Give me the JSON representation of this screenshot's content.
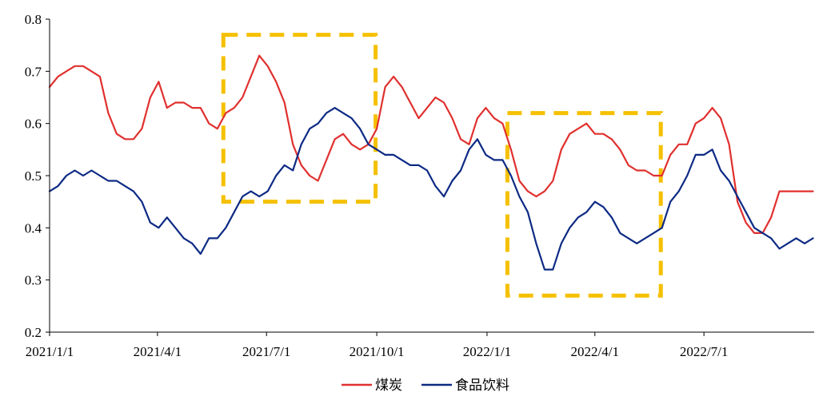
{
  "chart_data": {
    "type": "line",
    "title": "",
    "xlabel": "",
    "ylabel": "",
    "ylim": [
      0.2,
      0.8
    ],
    "yticks": [
      0.2,
      0.3,
      0.4,
      0.5,
      0.6,
      0.7,
      0.8
    ],
    "ytick_labels": [
      "0.2",
      "0.3",
      "0.4",
      "0.5",
      "0.6",
      "0.7",
      "0.8"
    ],
    "xlim": [
      "2021-01-01",
      "2022-10-01"
    ],
    "xticks": [
      "2021-01-01",
      "2021-04-01",
      "2021-07-01",
      "2021-10-01",
      "2022-01-01",
      "2022-04-01",
      "2022-07-01"
    ],
    "xtick_labels": [
      "2021/1/1",
      "2021/4/1",
      "2021/7/1",
      "2021/10/1",
      "2022/1/1",
      "2022/4/1",
      "2022/7/1"
    ],
    "grid": false,
    "legend_position": "bottom-center",
    "series": [
      {
        "name": "煤炭",
        "color": "#e0302e",
        "x": [
          "2021-01-01",
          "2021-01-08",
          "2021-01-15",
          "2021-01-22",
          "2021-01-29",
          "2021-02-05",
          "2021-02-12",
          "2021-02-19",
          "2021-02-26",
          "2021-03-05",
          "2021-03-12",
          "2021-03-19",
          "2021-03-26",
          "2021-04-02",
          "2021-04-09",
          "2021-04-16",
          "2021-04-23",
          "2021-04-30",
          "2021-05-07",
          "2021-05-14",
          "2021-05-21",
          "2021-05-28",
          "2021-06-04",
          "2021-06-11",
          "2021-06-18",
          "2021-06-25",
          "2021-07-02",
          "2021-07-09",
          "2021-07-16",
          "2021-07-23",
          "2021-07-30",
          "2021-08-06",
          "2021-08-13",
          "2021-08-20",
          "2021-08-27",
          "2021-09-03",
          "2021-09-10",
          "2021-09-17",
          "2021-09-24",
          "2021-10-01",
          "2021-10-08",
          "2021-10-15",
          "2021-10-22",
          "2021-10-29",
          "2021-11-05",
          "2021-11-12",
          "2021-11-19",
          "2021-11-26",
          "2021-12-03",
          "2021-12-10",
          "2021-12-17",
          "2021-12-24",
          "2021-12-31",
          "2022-01-07",
          "2022-01-14",
          "2022-01-21",
          "2022-01-28",
          "2022-02-04",
          "2022-02-11",
          "2022-02-18",
          "2022-02-25",
          "2022-03-04",
          "2022-03-11",
          "2022-03-18",
          "2022-03-25",
          "2022-04-01",
          "2022-04-08",
          "2022-04-15",
          "2022-04-22",
          "2022-04-29",
          "2022-05-06",
          "2022-05-13",
          "2022-05-20",
          "2022-05-27",
          "2022-06-03",
          "2022-06-10",
          "2022-06-17",
          "2022-06-24",
          "2022-07-01",
          "2022-07-08",
          "2022-07-15",
          "2022-07-22",
          "2022-07-29",
          "2022-08-05",
          "2022-08-12",
          "2022-08-19",
          "2022-08-26",
          "2022-09-02",
          "2022-09-09",
          "2022-09-16",
          "2022-09-23",
          "2022-09-30"
        ],
        "values": [
          0.67,
          0.69,
          0.7,
          0.71,
          0.71,
          0.7,
          0.69,
          0.62,
          0.58,
          0.57,
          0.57,
          0.59,
          0.65,
          0.68,
          0.63,
          0.64,
          0.64,
          0.63,
          0.63,
          0.6,
          0.59,
          0.62,
          0.63,
          0.65,
          0.69,
          0.73,
          0.71,
          0.68,
          0.64,
          0.56,
          0.52,
          0.5,
          0.49,
          0.53,
          0.57,
          0.58,
          0.56,
          0.55,
          0.56,
          0.59,
          0.67,
          0.69,
          0.67,
          0.64,
          0.61,
          0.63,
          0.65,
          0.64,
          0.61,
          0.57,
          0.56,
          0.61,
          0.63,
          0.61,
          0.6,
          0.55,
          0.49,
          0.47,
          0.46,
          0.47,
          0.49,
          0.55,
          0.58,
          0.59,
          0.6,
          0.58,
          0.58,
          0.57,
          0.55,
          0.52,
          0.51,
          0.51,
          0.5,
          0.5,
          0.54,
          0.56,
          0.56,
          0.6,
          0.61,
          0.63,
          0.61,
          0.56,
          0.45,
          0.41,
          0.39,
          0.39,
          0.42,
          0.47,
          0.47,
          0.47,
          0.47,
          0.47
        ]
      },
      {
        "name": "食品饮料",
        "color": "#0d2a84",
        "x": [
          "2021-01-01",
          "2021-01-08",
          "2021-01-15",
          "2021-01-22",
          "2021-01-29",
          "2021-02-05",
          "2021-02-12",
          "2021-02-19",
          "2021-02-26",
          "2021-03-05",
          "2021-03-12",
          "2021-03-19",
          "2021-03-26",
          "2021-04-02",
          "2021-04-09",
          "2021-04-16",
          "2021-04-23",
          "2021-04-30",
          "2021-05-07",
          "2021-05-14",
          "2021-05-21",
          "2021-05-28",
          "2021-06-04",
          "2021-06-11",
          "2021-06-18",
          "2021-06-25",
          "2021-07-02",
          "2021-07-09",
          "2021-07-16",
          "2021-07-23",
          "2021-07-30",
          "2021-08-06",
          "2021-08-13",
          "2021-08-20",
          "2021-08-27",
          "2021-09-03",
          "2021-09-10",
          "2021-09-17",
          "2021-09-24",
          "2021-10-01",
          "2021-10-08",
          "2021-10-15",
          "2021-10-22",
          "2021-10-29",
          "2021-11-05",
          "2021-11-12",
          "2021-11-19",
          "2021-11-26",
          "2021-12-03",
          "2021-12-10",
          "2021-12-17",
          "2021-12-24",
          "2021-12-31",
          "2022-01-07",
          "2022-01-14",
          "2022-01-21",
          "2022-01-28",
          "2022-02-04",
          "2022-02-11",
          "2022-02-18",
          "2022-02-25",
          "2022-03-04",
          "2022-03-11",
          "2022-03-18",
          "2022-03-25",
          "2022-04-01",
          "2022-04-08",
          "2022-04-15",
          "2022-04-22",
          "2022-04-29",
          "2022-05-06",
          "2022-05-13",
          "2022-05-20",
          "2022-05-27",
          "2022-06-03",
          "2022-06-10",
          "2022-06-17",
          "2022-06-24",
          "2022-07-01",
          "2022-07-08",
          "2022-07-15",
          "2022-07-22",
          "2022-07-29",
          "2022-08-05",
          "2022-08-12",
          "2022-08-19",
          "2022-08-26",
          "2022-09-02",
          "2022-09-09",
          "2022-09-16",
          "2022-09-23",
          "2022-09-30"
        ],
        "values": [
          0.47,
          0.48,
          0.5,
          0.51,
          0.5,
          0.51,
          0.5,
          0.49,
          0.49,
          0.48,
          0.47,
          0.45,
          0.41,
          0.4,
          0.42,
          0.4,
          0.38,
          0.37,
          0.35,
          0.38,
          0.38,
          0.4,
          0.43,
          0.46,
          0.47,
          0.46,
          0.47,
          0.5,
          0.52,
          0.51,
          0.56,
          0.59,
          0.6,
          0.62,
          0.63,
          0.62,
          0.61,
          0.59,
          0.56,
          0.55,
          0.54,
          0.54,
          0.53,
          0.52,
          0.52,
          0.51,
          0.48,
          0.46,
          0.49,
          0.51,
          0.55,
          0.57,
          0.54,
          0.53,
          0.53,
          0.5,
          0.46,
          0.43,
          0.37,
          0.32,
          0.32,
          0.37,
          0.4,
          0.42,
          0.43,
          0.45,
          0.44,
          0.42,
          0.39,
          0.38,
          0.37,
          0.38,
          0.39,
          0.4,
          0.45,
          0.47,
          0.5,
          0.54,
          0.54,
          0.55,
          0.51,
          0.49,
          0.46,
          0.43,
          0.4,
          0.39,
          0.38,
          0.36,
          0.37,
          0.38,
          0.37,
          0.38
        ]
      }
    ],
    "highlight_boxes": [
      {
        "x_start": "2021-05-26",
        "x_end": "2021-09-30",
        "y_low": 0.45,
        "y_high": 0.77,
        "color": "#f5c000"
      },
      {
        "x_start": "2022-01-18",
        "x_end": "2022-05-26",
        "y_low": 0.27,
        "y_high": 0.62,
        "color": "#f5c000"
      }
    ]
  }
}
